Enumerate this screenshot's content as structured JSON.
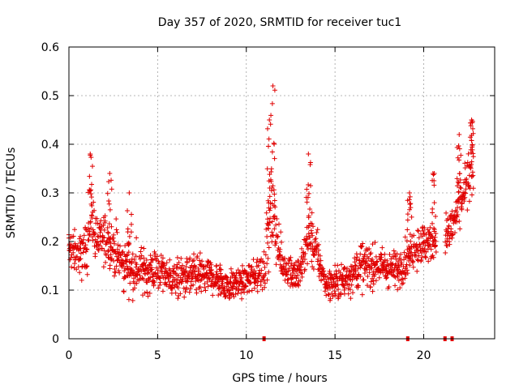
{
  "chart_data": {
    "type": "scatter",
    "title": "Day 357 of 2020, SRMTID for receiver tuc1",
    "xlabel": "GPS time / hours",
    "ylabel": "SRMTID / TECUs",
    "xlim": [
      0,
      24
    ],
    "ylim": [
      0,
      0.6
    ],
    "xticks": [
      0,
      5,
      10,
      15,
      20
    ],
    "yticks": [
      0,
      0.1,
      0.2,
      0.3,
      0.4,
      0.5,
      0.6
    ],
    "xtick_labels": [
      "0",
      "5",
      "10",
      "15",
      "20"
    ],
    "ytick_labels": [
      "0",
      "0.1",
      "0.2",
      "0.3",
      "0.4",
      "0.5",
      "0.6"
    ],
    "grid": true,
    "marker": "+",
    "color": "#e00000",
    "series": [
      {
        "name": "SRMTID",
        "note": "approximate trend envelope of the dense point cloud (hour, mean value, spread)",
        "trend": [
          [
            0.0,
            0.19,
            0.06
          ],
          [
            0.5,
            0.17,
            0.06
          ],
          [
            1.0,
            0.18,
            0.07
          ],
          [
            1.2,
            0.26,
            0.08
          ],
          [
            1.6,
            0.2,
            0.06
          ],
          [
            2.3,
            0.2,
            0.07
          ],
          [
            3.0,
            0.15,
            0.06
          ],
          [
            4.0,
            0.14,
            0.06
          ],
          [
            5.0,
            0.14,
            0.05
          ],
          [
            6.0,
            0.12,
            0.05
          ],
          [
            7.0,
            0.13,
            0.05
          ],
          [
            8.0,
            0.13,
            0.05
          ],
          [
            9.0,
            0.11,
            0.04
          ],
          [
            10.0,
            0.12,
            0.04
          ],
          [
            11.0,
            0.14,
            0.06
          ],
          [
            11.4,
            0.28,
            0.12
          ],
          [
            12.0,
            0.15,
            0.05
          ],
          [
            13.0,
            0.13,
            0.05
          ],
          [
            13.6,
            0.22,
            0.08
          ],
          [
            14.5,
            0.11,
            0.04
          ],
          [
            15.5,
            0.12,
            0.05
          ],
          [
            16.5,
            0.15,
            0.06
          ],
          [
            17.5,
            0.15,
            0.05
          ],
          [
            18.5,
            0.14,
            0.05
          ],
          [
            19.5,
            0.19,
            0.06
          ],
          [
            20.5,
            0.2,
            0.05
          ],
          [
            21.5,
            0.22,
            0.06
          ],
          [
            22.3,
            0.3,
            0.08
          ],
          [
            22.8,
            0.36,
            0.08
          ]
        ],
        "spikes": [
          [
            1.2,
            0.38
          ],
          [
            2.3,
            0.34
          ],
          [
            3.4,
            0.3
          ],
          [
            11.3,
            0.45
          ],
          [
            11.5,
            0.52
          ],
          [
            13.5,
            0.38
          ],
          [
            19.2,
            0.3
          ],
          [
            20.6,
            0.34
          ],
          [
            22.0,
            0.42
          ],
          [
            22.7,
            0.45
          ]
        ],
        "zero_points": [
          [
            11.0,
            0
          ],
          [
            19.1,
            0
          ],
          [
            21.2,
            0
          ],
          [
            21.6,
            0
          ]
        ],
        "gaps": [
          [
            20.7,
            21.2
          ]
        ]
      }
    ]
  }
}
